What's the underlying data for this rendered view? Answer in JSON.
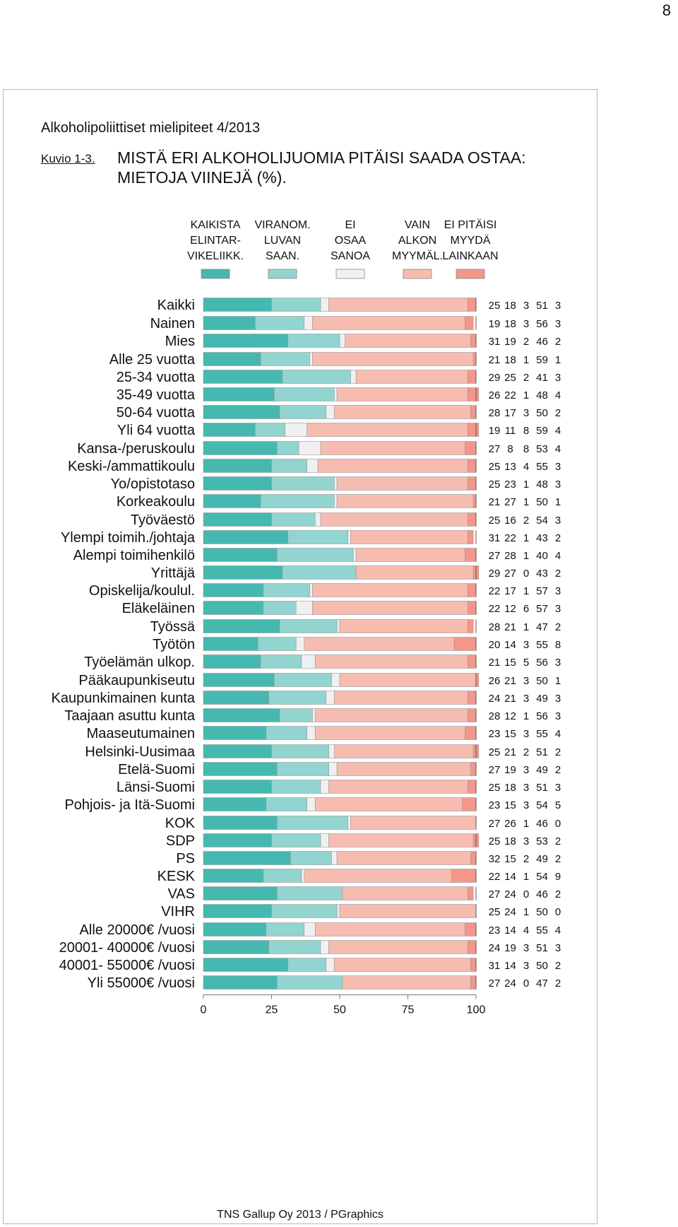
{
  "page_number": "8",
  "report_title": "Alkoholipoliittiset mielipiteet 4/2013",
  "figure_label": "Kuvio 1-3.",
  "figure_title_line1": "MISTÄ ERI ALKOHOLIJUOMIA PITÄISI SAADA OSTAA:",
  "figure_title_line2": "MIETOJA VIINEJÄ (%).",
  "footer": "TNS Gallup Oy 2013 / PGraphics",
  "colors": [
    "#45b8b0",
    "#92d4d0",
    "#f0f0f0",
    "#f7bcb0",
    "#f4968a"
  ],
  "chart_data": {
    "type": "bar",
    "stacked": true,
    "orientation": "horizontal",
    "xlim": [
      0,
      100
    ],
    "xticks": [
      "0",
      "25",
      "50",
      "75",
      "100"
    ],
    "legend": [
      [
        "KAIKISTA",
        "ELINTAR-",
        "VIKELIIKK."
      ],
      [
        "VIRANOM.",
        "LUVAN",
        "SAAN."
      ],
      [
        "EI",
        "OSAA",
        "SANOA"
      ],
      [
        "VAIN",
        "ALKON",
        "MYYMÄL."
      ],
      [
        "EI PITÄISI",
        "MYYDÄ",
        "LAINKAAN"
      ]
    ],
    "groups": [
      [
        {
          "label": "Kaikki",
          "values": [
            25,
            18,
            3,
            51,
            3
          ]
        }
      ],
      [
        {
          "label": "Nainen",
          "values": [
            19,
            18,
            3,
            56,
            3
          ]
        },
        {
          "label": "Mies",
          "values": [
            31,
            19,
            2,
            46,
            2
          ]
        }
      ],
      [
        {
          "label": "Alle 25 vuotta",
          "values": [
            21,
            18,
            1,
            59,
            1
          ]
        },
        {
          "label": "25-34 vuotta",
          "values": [
            29,
            25,
            2,
            41,
            3
          ]
        },
        {
          "label": "35-49 vuotta",
          "values": [
            26,
            22,
            1,
            48,
            4
          ]
        },
        {
          "label": "50-64 vuotta",
          "values": [
            28,
            17,
            3,
            50,
            2
          ]
        },
        {
          "label": "Yli 64 vuotta",
          "values": [
            19,
            11,
            8,
            59,
            4
          ]
        }
      ],
      [
        {
          "label": "Kansa-/peruskoulu",
          "values": [
            27,
            8,
            8,
            53,
            4
          ]
        },
        {
          "label": "Keski-/ammattikoulu",
          "values": [
            25,
            13,
            4,
            55,
            3
          ]
        },
        {
          "label": "Yo/opistotaso",
          "values": [
            25,
            23,
            1,
            48,
            3
          ]
        },
        {
          "label": "Korkeakoulu",
          "values": [
            21,
            27,
            1,
            50,
            1
          ]
        }
      ],
      [
        {
          "label": "Työväestö",
          "values": [
            25,
            16,
            2,
            54,
            3
          ]
        },
        {
          "label": "Ylempi toimih./johtaja",
          "values": [
            31,
            22,
            1,
            43,
            2
          ]
        },
        {
          "label": "Alempi toimihenkilö",
          "values": [
            27,
            28,
            1,
            40,
            4
          ]
        },
        {
          "label": "Yrittäjä",
          "values": [
            29,
            27,
            0,
            43,
            2
          ]
        },
        {
          "label": "Opiskelija/koulul.",
          "values": [
            22,
            17,
            1,
            57,
            3
          ]
        },
        {
          "label": "Eläkeläinen",
          "values": [
            22,
            12,
            6,
            57,
            3
          ]
        }
      ],
      [
        {
          "label": "Työssä",
          "values": [
            28,
            21,
            1,
            47,
            2
          ]
        },
        {
          "label": "Työtön",
          "values": [
            20,
            14,
            3,
            55,
            8
          ]
        },
        {
          "label": "Työelämän ulkop.",
          "values": [
            21,
            15,
            5,
            56,
            3
          ]
        }
      ],
      [
        {
          "label": "Pääkaupunkiseutu",
          "values": [
            26,
            21,
            3,
            50,
            1
          ]
        },
        {
          "label": "Kaupunkimainen kunta",
          "values": [
            24,
            21,
            3,
            49,
            3
          ]
        },
        {
          "label": "Taajaan asuttu kunta",
          "values": [
            28,
            12,
            1,
            56,
            3
          ]
        },
        {
          "label": "Maaseutumainen",
          "values": [
            23,
            15,
            3,
            55,
            4
          ]
        }
      ],
      [
        {
          "label": "Helsinki-Uusimaa",
          "values": [
            25,
            21,
            2,
            51,
            2
          ]
        },
        {
          "label": "Etelä-Suomi",
          "values": [
            27,
            19,
            3,
            49,
            2
          ]
        },
        {
          "label": "Länsi-Suomi",
          "values": [
            25,
            18,
            3,
            51,
            3
          ]
        },
        {
          "label": "Pohjois- ja Itä-Suomi",
          "values": [
            23,
            15,
            3,
            54,
            5
          ]
        }
      ],
      [
        {
          "label": "KOK",
          "values": [
            27,
            26,
            1,
            46,
            0
          ]
        },
        {
          "label": "SDP",
          "values": [
            25,
            18,
            3,
            53,
            2
          ]
        },
        {
          "label": "PS",
          "values": [
            32,
            15,
            2,
            49,
            2
          ]
        },
        {
          "label": "KESK",
          "values": [
            22,
            14,
            1,
            54,
            9
          ]
        },
        {
          "label": "VAS",
          "values": [
            27,
            24,
            0,
            46,
            2
          ]
        },
        {
          "label": "VIHR",
          "values": [
            25,
            24,
            1,
            50,
            0
          ]
        }
      ],
      [
        {
          "label": "Alle 20000€ /vuosi",
          "values": [
            23,
            14,
            4,
            55,
            4
          ]
        },
        {
          "label": "20001- 40000€ /vuosi",
          "values": [
            24,
            19,
            3,
            51,
            3
          ]
        },
        {
          "label": "40001- 55000€ /vuosi",
          "values": [
            31,
            14,
            3,
            50,
            2
          ]
        },
        {
          "label": "Yli 55000€ /vuosi",
          "values": [
            27,
            24,
            0,
            47,
            2
          ]
        }
      ]
    ]
  }
}
